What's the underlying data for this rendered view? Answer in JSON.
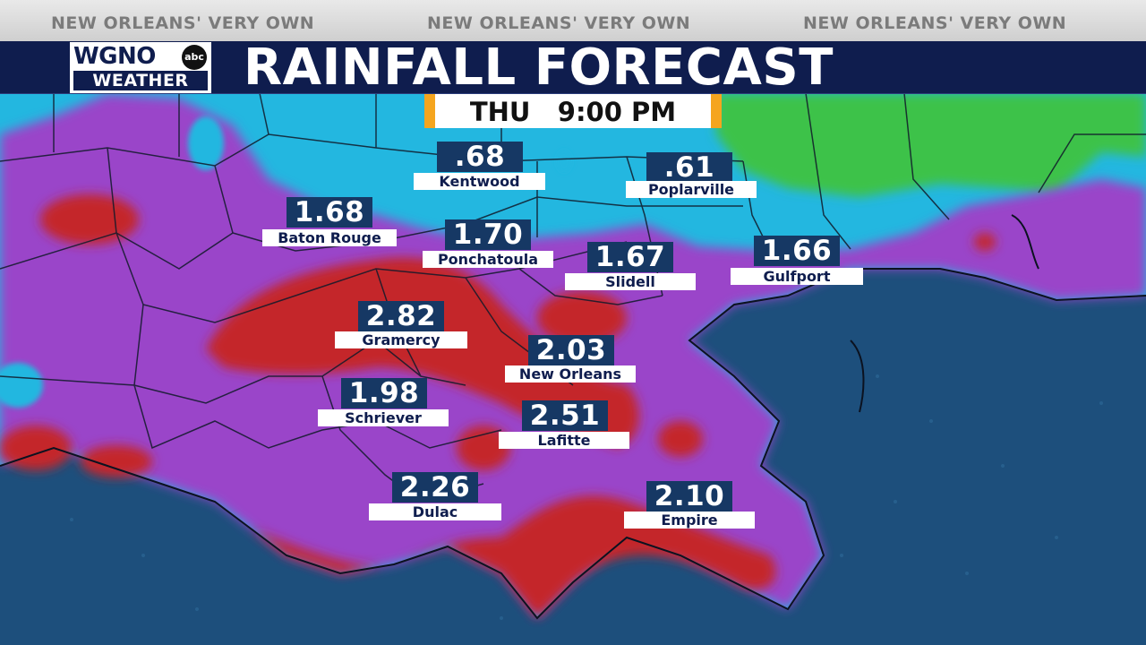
{
  "branding": {
    "tagline": "NEW ORLEANS' VERY OWN",
    "station": "WGNO",
    "network": "abc",
    "section": "WEATHER"
  },
  "title": "RAINFALL FORECAST",
  "time": {
    "day": "THU",
    "clock": "9:00 PM"
  },
  "colors": {
    "title_bar": "#0f1d4e",
    "time_accent": "#f5a51e",
    "label_value_bg": "#163864",
    "water": "#1d4f7c",
    "rain_green": "#3ec24a",
    "rain_cyan": "#23b7e0",
    "rain_purple": "#9a45c9",
    "rain_red": "#c4252a"
  },
  "locations": [
    {
      "name": "Kentwood",
      "value": ".68"
    },
    {
      "name": "Poplarville",
      "value": ".61"
    },
    {
      "name": "Baton Rouge",
      "value": "1.68"
    },
    {
      "name": "Ponchatoula",
      "value": "1.70"
    },
    {
      "name": "Slidell",
      "value": "1.67"
    },
    {
      "name": "Gulfport",
      "value": "1.66"
    },
    {
      "name": "Gramercy",
      "value": "2.82"
    },
    {
      "name": "New Orleans",
      "value": "2.03"
    },
    {
      "name": "Schriever",
      "value": "1.98"
    },
    {
      "name": "Lafitte",
      "value": "2.51"
    },
    {
      "name": "Dulac",
      "value": "2.26"
    },
    {
      "name": "Empire",
      "value": "2.10"
    }
  ]
}
